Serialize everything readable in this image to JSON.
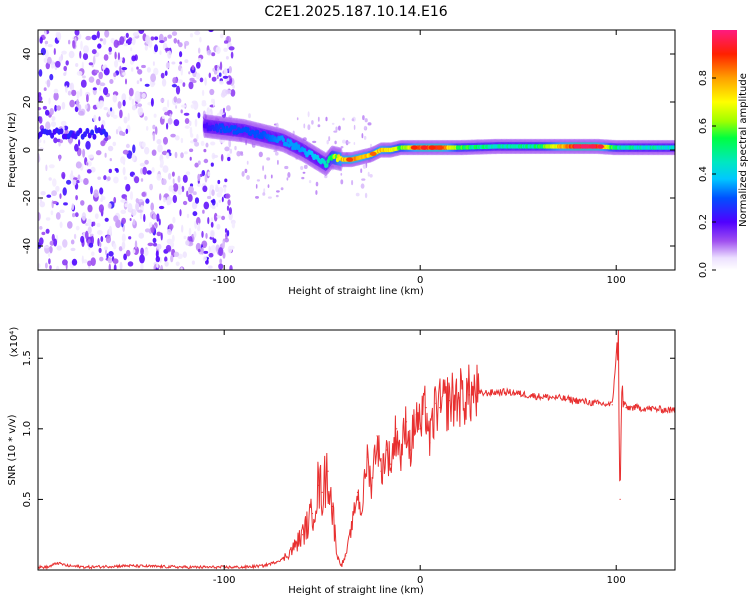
{
  "figure": {
    "title": "C2E1.2025.187.10.14.E16"
  },
  "chart_data": [
    {
      "type": "heatmap",
      "title": "C2E1.2025.187.10.14.E16",
      "xlabel": "Height of straight line (km)",
      "ylabel": "Frequency (Hz)",
      "xlim": [
        -195,
        130
      ],
      "ylim": [
        -50,
        50
      ],
      "x_ticks": [
        -100,
        0,
        100
      ],
      "x_tick_labels": [
        "-100",
        "0",
        "100"
      ],
      "y_ticks": [
        -40,
        -20,
        0,
        20,
        40
      ],
      "y_tick_labels": [
        "-40",
        "-20",
        "0",
        "20",
        "40"
      ],
      "colorbar": {
        "label": "Normalized spectral amplitude",
        "range": [
          0,
          1
        ],
        "ticks": [
          0.0,
          0.2,
          0.4,
          0.6,
          0.8
        ],
        "tick_labels": [
          "0.0",
          "0.2",
          "0.4",
          "0.6",
          "0.8"
        ]
      },
      "ridge": {
        "x": [
          -110,
          -100,
          -90,
          -80,
          -70,
          -60,
          -52,
          -48,
          -45,
          -40,
          -35,
          -30,
          -25,
          -20,
          -15,
          -10,
          -5,
          0,
          10,
          20,
          40,
          60,
          80,
          90,
          100,
          110,
          130
        ],
        "freq_hz": [
          10,
          9,
          8,
          6,
          4,
          0,
          -4,
          -6,
          -3,
          -4,
          -4,
          -3,
          -2,
          0,
          0,
          1,
          1,
          1,
          1,
          1,
          1.5,
          1.5,
          1.5,
          1.5,
          1,
          1,
          1
        ],
        "amplitude": [
          0.2,
          0.3,
          0.3,
          0.3,
          0.35,
          0.35,
          0.4,
          0.45,
          0.55,
          0.75,
          0.85,
          0.8,
          0.7,
          0.75,
          0.7,
          0.6,
          0.7,
          0.85,
          0.9,
          0.55,
          0.45,
          0.5,
          0.95,
          0.9,
          0.5,
          0.45,
          0.45
        ]
      },
      "noise_region_x": [
        -195,
        -95
      ]
    },
    {
      "type": "line",
      "xlabel": "Height of straight line (km)",
      "ylabel": "SNR (10 * v/v)",
      "y_multiplier_label": "(x10⁴)",
      "xlim": [
        -195,
        130
      ],
      "ylim": [
        0,
        1.7
      ],
      "x_ticks": [
        -100,
        0,
        100
      ],
      "x_tick_labels": [
        "-100",
        "0",
        "100"
      ],
      "y_ticks": [
        0.5,
        1.0,
        1.5
      ],
      "y_tick_labels": [
        "0.5",
        "1.0",
        "1.5"
      ],
      "line_color": "#e83030",
      "series": [
        {
          "x": [
            -195,
            -190,
            -185,
            -180,
            -170,
            -150,
            -120,
            -100,
            -90,
            -80,
            -75,
            -70,
            -65,
            -60,
            -55,
            -52,
            -50,
            -47,
            -45,
            -42,
            -40,
            -38,
            -35,
            -32,
            -30,
            -27,
            -25,
            -22,
            -20,
            -17,
            -15,
            -12,
            -10,
            -7,
            -5,
            -2,
            0,
            3,
            5,
            8,
            10,
            15,
            20,
            25,
            30,
            40,
            45,
            50,
            60,
            70,
            80,
            90,
            98,
            101,
            102,
            103,
            105,
            110,
            120,
            130
          ],
          "y": [
            0.02,
            0.02,
            0.05,
            0.03,
            0.02,
            0.03,
            0.02,
            0.02,
            0.02,
            0.03,
            0.05,
            0.08,
            0.15,
            0.25,
            0.4,
            0.6,
            0.55,
            0.7,
            0.45,
            0.08,
            0.04,
            0.1,
            0.3,
            0.55,
            0.4,
            0.8,
            0.6,
            0.95,
            0.7,
            0.85,
            0.75,
            1.0,
            0.8,
            1.05,
            0.85,
            1.1,
            1.0,
            1.15,
            0.9,
            1.18,
            1.15,
            1.2,
            1.22,
            1.24,
            1.25,
            1.26,
            1.26,
            1.25,
            1.23,
            1.22,
            1.2,
            1.18,
            1.17,
            1.7,
            0.5,
            1.25,
            1.15,
            1.15,
            1.14,
            1.13
          ]
        }
      ]
    }
  ]
}
